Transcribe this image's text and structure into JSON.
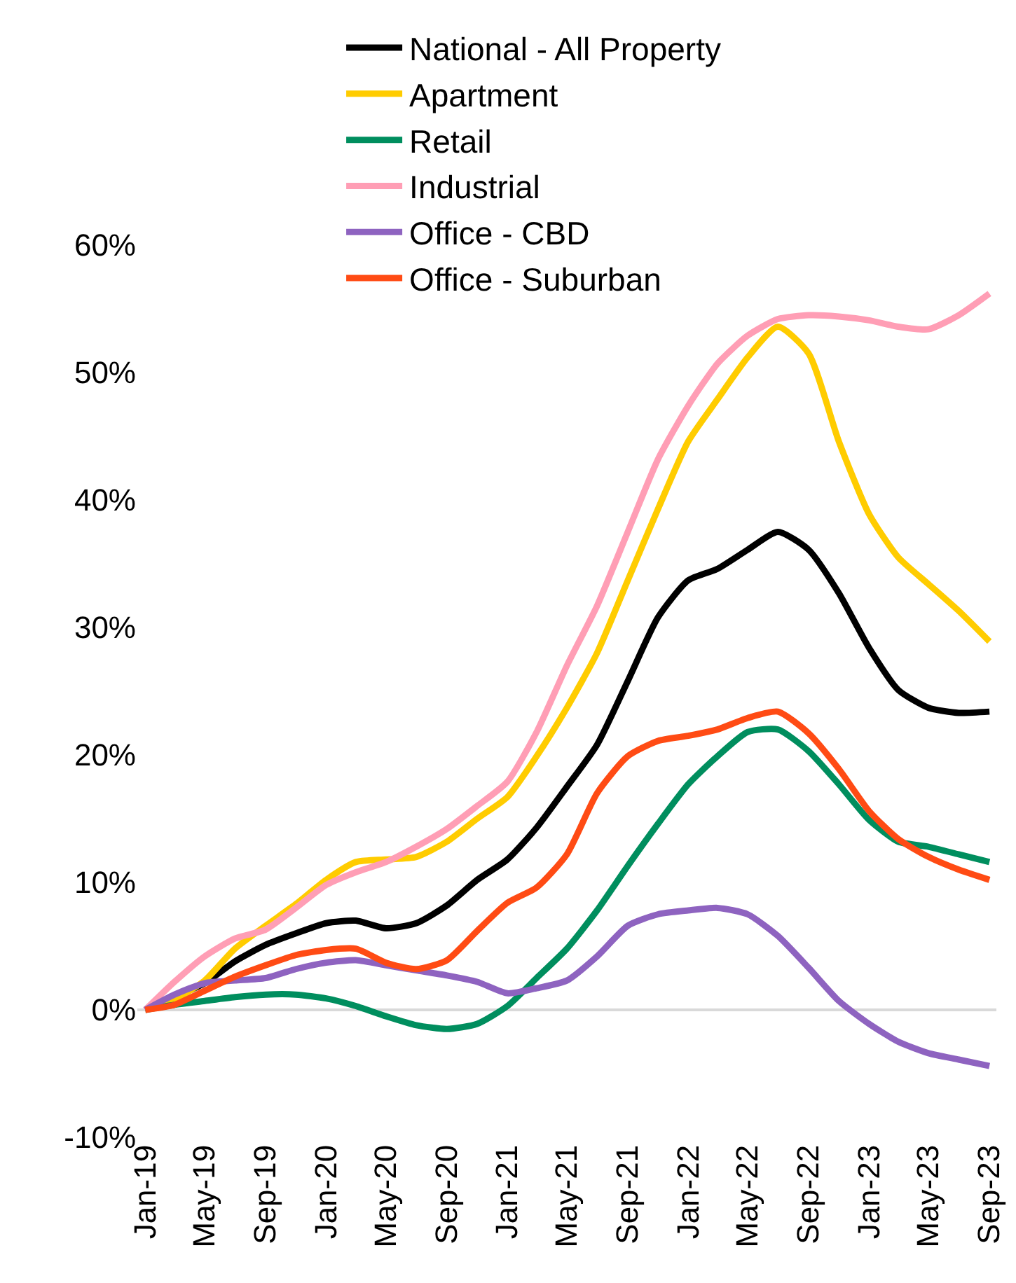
{
  "chart_data": {
    "type": "line",
    "x": [
      "2019-01",
      "2019-03",
      "2019-05",
      "2019-07",
      "2019-09",
      "2019-11",
      "2020-01",
      "2020-03",
      "2020-05",
      "2020-07",
      "2020-09",
      "2020-11",
      "2021-01",
      "2021-03",
      "2021-05",
      "2021-07",
      "2021-09",
      "2021-11",
      "2022-01",
      "2022-03",
      "2022-05",
      "2022-07",
      "2022-09",
      "2022-11",
      "2023-01",
      "2023-03",
      "2023-05",
      "2023-07",
      "2023-09"
    ],
    "series": [
      {
        "name": "National - All Property",
        "color": "#000000",
        "values": [
          0,
          1.0,
          2.1,
          3.8,
          5.1,
          6.0,
          6.8,
          7.0,
          6.4,
          6.8,
          8.2,
          10.2,
          11.8,
          14.3,
          17.5,
          20.8,
          25.8,
          30.8,
          33.7,
          34.6,
          36.1,
          37.5,
          36.1,
          32.7,
          28.4,
          25.1,
          23.7,
          23.3,
          23.4
        ]
      },
      {
        "name": "Apartment",
        "color": "#ffcc00",
        "values": [
          0,
          0.8,
          2.3,
          4.8,
          6.6,
          8.3,
          10.2,
          11.6,
          11.8,
          12.0,
          13.2,
          15.0,
          16.7,
          19.9,
          23.7,
          28.0,
          33.7,
          39.3,
          44.6,
          47.9,
          51.2,
          53.6,
          51.5,
          44.6,
          38.9,
          35.5,
          33.4,
          31.3,
          28.9
        ]
      },
      {
        "name": "Retail",
        "color": "#008e5e",
        "values": [
          0,
          0.4,
          0.7,
          1.0,
          1.2,
          1.2,
          0.9,
          0.3,
          -0.5,
          -1.2,
          -1.5,
          -1.1,
          0.3,
          2.5,
          4.8,
          7.8,
          11.3,
          14.6,
          17.7,
          19.9,
          21.8,
          22.0,
          20.3,
          17.7,
          14.9,
          13.2,
          12.8,
          12.2,
          11.6
        ]
      },
      {
        "name": "Industrial",
        "color": "#ff9eb5",
        "values": [
          0,
          2.2,
          4.2,
          5.6,
          6.3,
          8.0,
          9.8,
          10.8,
          11.6,
          12.8,
          14.2,
          16.0,
          17.9,
          21.8,
          27.0,
          31.7,
          37.5,
          43.2,
          47.4,
          50.7,
          52.9,
          54.2,
          54.5,
          54.4,
          54.1,
          53.6,
          53.4,
          54.5,
          56.2
        ]
      },
      {
        "name": "Office - CBD",
        "color": "#8e63c0",
        "values": [
          0,
          1.2,
          2.1,
          2.3,
          2.5,
          3.2,
          3.7,
          3.9,
          3.5,
          3.1,
          2.7,
          2.2,
          1.3,
          1.7,
          2.3,
          4.2,
          6.6,
          7.5,
          7.8,
          8.0,
          7.5,
          5.8,
          3.3,
          0.7,
          -1.1,
          -2.5,
          -3.4,
          -3.9,
          -4.4
        ]
      },
      {
        "name": "Office - Suburban",
        "color": "#ff4b14",
        "values": [
          0,
          0.4,
          1.5,
          2.6,
          3.5,
          4.3,
          4.7,
          4.8,
          3.7,
          3.2,
          3.9,
          6.2,
          8.4,
          9.6,
          12.2,
          17.0,
          19.9,
          21.1,
          21.5,
          22.0,
          22.9,
          23.4,
          21.7,
          18.9,
          15.6,
          13.4,
          12.0,
          11.0,
          10.2
        ]
      }
    ],
    "xlim": [
      "2018-12-16",
      "2023-09-15"
    ],
    "xticks": [
      {
        "value": "2019-01",
        "label": "Jan-19"
      },
      {
        "value": "2019-05",
        "label": "May-19"
      },
      {
        "value": "2019-09",
        "label": "Sep-19"
      },
      {
        "value": "2020-01",
        "label": "Jan-20"
      },
      {
        "value": "2020-05",
        "label": "May-20"
      },
      {
        "value": "2020-09",
        "label": "Sep-20"
      },
      {
        "value": "2021-01",
        "label": "Jan-21"
      },
      {
        "value": "2021-05",
        "label": "May-21"
      },
      {
        "value": "2021-09",
        "label": "Sep-21"
      },
      {
        "value": "2022-01",
        "label": "Jan-22"
      },
      {
        "value": "2022-05",
        "label": "May-22"
      },
      {
        "value": "2022-09",
        "label": "Sep-22"
      },
      {
        "value": "2023-01",
        "label": "Jan-23"
      },
      {
        "value": "2023-05",
        "label": "May-23"
      },
      {
        "value": "2023-09",
        "label": "Sep-23"
      }
    ],
    "ylim": [
      -10,
      60
    ],
    "yticks": [
      {
        "value": -10,
        "label": "-10%"
      },
      {
        "value": 0,
        "label": "0%"
      },
      {
        "value": 10,
        "label": "10%"
      },
      {
        "value": 20,
        "label": "20%"
      },
      {
        "value": 30,
        "label": "30%"
      },
      {
        "value": 40,
        "label": "40%"
      },
      {
        "value": 50,
        "label": "50%"
      },
      {
        "value": 60,
        "label": "60%"
      }
    ],
    "ref_lines": [
      {
        "axis": "y",
        "value": 0,
        "color": "#d9d9d9"
      }
    ],
    "grid": false,
    "legend": "top",
    "marker": "none",
    "line_style": "solid"
  }
}
